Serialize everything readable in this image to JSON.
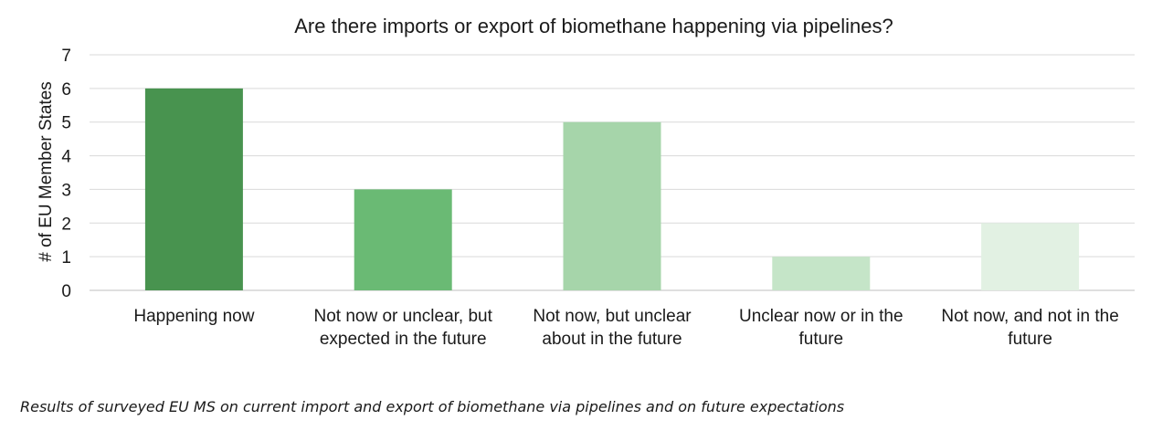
{
  "chart_data": {
    "type": "bar",
    "title": "Are there imports or export of biomethane happening via pipelines?",
    "xlabel": "",
    "ylabel": "# of EU Member States",
    "ylim": [
      0,
      7
    ],
    "yticks": [
      0,
      1,
      2,
      3,
      4,
      5,
      6,
      7
    ],
    "grid": true,
    "legend": "none",
    "categories": [
      "Happening now",
      "Not now or unclear, but expected in the future",
      "Not now, but unclear about in the future",
      "Unclear now or in the future",
      "Not now, and not in the future"
    ],
    "category_lines": [
      [
        "Happening now"
      ],
      [
        "Not now or unclear, but",
        "expected in the future"
      ],
      [
        "Not now, but unclear",
        "about in the future"
      ],
      [
        "Unclear now or in the",
        "future"
      ],
      [
        "Not now, and not in the",
        "future"
      ]
    ],
    "values": [
      6,
      3,
      5,
      1,
      2
    ],
    "bar_colors": [
      "#48934f",
      "#6aba74",
      "#a6d5aa",
      "#c5e5c8",
      "#e2f1e3"
    ]
  },
  "caption": "Results of surveyed EU MS on current import and export of biomethane via pipelines and on future expectations"
}
